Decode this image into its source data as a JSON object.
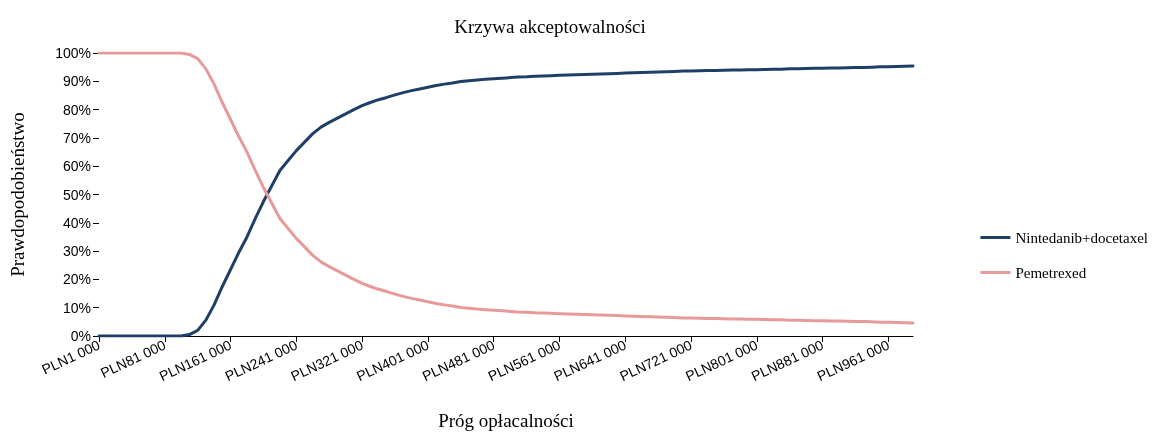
{
  "chart_data": {
    "type": "line",
    "title": "Krzywa akceptowalności",
    "xlabel": "Próg opłacalności",
    "ylabel": "Prawdopodobieństwo",
    "categories": [
      "PLN1 000",
      null,
      null,
      null,
      null,
      null,
      null,
      null,
      "PLN81 000",
      null,
      null,
      null,
      null,
      null,
      null,
      null,
      "PLN161 000",
      null,
      null,
      null,
      null,
      null,
      null,
      null,
      "PLN241 000",
      null,
      null,
      null,
      null,
      null,
      null,
      null,
      "PLN321 000",
      null,
      null,
      null,
      null,
      null,
      null,
      null,
      "PLN401 000",
      null,
      null,
      null,
      null,
      null,
      null,
      null,
      "PLN481 000",
      null,
      null,
      null,
      null,
      null,
      null,
      null,
      "PLN561 000",
      null,
      null,
      null,
      null,
      null,
      null,
      null,
      "PLN641 000",
      null,
      null,
      null,
      null,
      null,
      null,
      null,
      "PLN721 000",
      null,
      null,
      null,
      null,
      null,
      null,
      null,
      "PLN801 000",
      null,
      null,
      null,
      null,
      null,
      null,
      null,
      "PLN881 000",
      null,
      null,
      null,
      null,
      null,
      null,
      null,
      "PLN961 000",
      null,
      null,
      null
    ],
    "series": [
      {
        "name": "Nintedanib+docetaxel",
        "color": "#1f3f66",
        "values": [
          0,
          0,
          0,
          0,
          0,
          0,
          0,
          0,
          0,
          0,
          0,
          0.5,
          2,
          5.6,
          11,
          17.5,
          23.5,
          29.5,
          35,
          41.5,
          47.5,
          53,
          58.5,
          62,
          65.5,
          68.5,
          71.5,
          73.8,
          75.5,
          77,
          78.5,
          80,
          81.4,
          82.5,
          83.5,
          84.3,
          85.2,
          86,
          86.7,
          87.3,
          87.9,
          88.5,
          89,
          89.4,
          89.9,
          90.2,
          90.5,
          90.7,
          90.9,
          91.1,
          91.3,
          91.5,
          91.6,
          91.8,
          91.9,
          92,
          92.1,
          92.2,
          92.3,
          92.4,
          92.5,
          92.6,
          92.7,
          92.8,
          92.9,
          93,
          93.1,
          93.2,
          93.3,
          93.4,
          93.5,
          93.6,
          93.6,
          93.7,
          93.8,
          93.8,
          93.9,
          94,
          94,
          94.1,
          94.1,
          94.2,
          94.3,
          94.3,
          94.4,
          94.4,
          94.5,
          94.6,
          94.6,
          94.7,
          94.7,
          94.8,
          94.9,
          94.9,
          95,
          95.1,
          95.1,
          95.2,
          95.3,
          95.4
        ]
      },
      {
        "name": "Pemetrexed",
        "color": "#e8999a",
        "values": [
          100,
          100,
          100,
          100,
          100,
          100,
          100,
          100,
          100,
          100,
          100,
          99.5,
          98,
          94.4,
          89,
          82.5,
          76.5,
          70.5,
          65,
          58.5,
          52.5,
          47,
          41.5,
          38,
          34.5,
          31.5,
          28.5,
          26.2,
          24.5,
          23,
          21.5,
          20,
          18.6,
          17.5,
          16.5,
          15.7,
          14.8,
          14,
          13.3,
          12.7,
          12.1,
          11.5,
          11,
          10.6,
          10.1,
          9.8,
          9.5,
          9.3,
          9.1,
          8.9,
          8.7,
          8.5,
          8.4,
          8.2,
          8.1,
          8,
          7.9,
          7.8,
          7.7,
          7.6,
          7.5,
          7.4,
          7.3,
          7.2,
          7.1,
          7,
          6.9,
          6.8,
          6.7,
          6.6,
          6.5,
          6.4,
          6.4,
          6.3,
          6.2,
          6.2,
          6.1,
          6,
          6,
          5.9,
          5.9,
          5.8,
          5.7,
          5.7,
          5.6,
          5.6,
          5.5,
          5.4,
          5.4,
          5.3,
          5.3,
          5.2,
          5.1,
          5.1,
          5,
          4.9,
          4.9,
          4.8,
          4.7,
          4.6
        ]
      }
    ],
    "ylim": [
      0,
      100
    ],
    "yticks": [
      {
        "value": 0,
        "label": "0%"
      },
      {
        "value": 10,
        "label": "10%"
      },
      {
        "value": 20,
        "label": "20%"
      },
      {
        "value": 30,
        "label": "30%"
      },
      {
        "value": 40,
        "label": "40%"
      },
      {
        "value": 50,
        "label": "50%"
      },
      {
        "value": 60,
        "label": "60%"
      },
      {
        "value": 70,
        "label": "70%"
      },
      {
        "value": 80,
        "label": "80%"
      },
      {
        "value": 90,
        "label": "90%"
      },
      {
        "value": 100,
        "label": "100%"
      }
    ],
    "grid": false,
    "legend": "right",
    "marker": "none",
    "line_style": "solid"
  }
}
